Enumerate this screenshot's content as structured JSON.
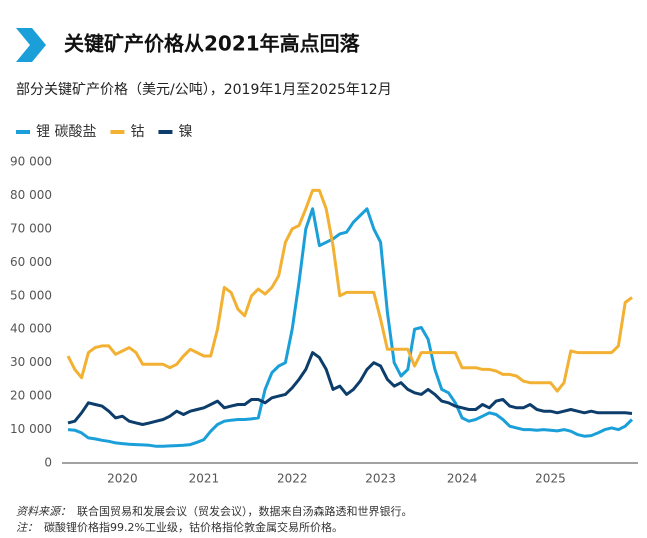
{
  "chart_data": {
    "type": "line",
    "title": "关键矿产价格从2021年高点回落",
    "subtitle": "部分关键矿产价格（美元/公吨），2019年1月至2025年12月",
    "categories": [
      null,
      null,
      null,
      null,
      null,
      null,
      null,
      null,
      "2020",
      null,
      null,
      null,
      null,
      null,
      null,
      null,
      null,
      null,
      null,
      null,
      "2021",
      null,
      null,
      null,
      null,
      null,
      null,
      null,
      null,
      null,
      null,
      null,
      null,
      "2022",
      null,
      null,
      null,
      null,
      null,
      null,
      null,
      null,
      null,
      null,
      null,
      null,
      "2023",
      null,
      null,
      null,
      null,
      null,
      null,
      null,
      null,
      null,
      null,
      null,
      "2024",
      null,
      null,
      null,
      null,
      null,
      null,
      null,
      null,
      null,
      null,
      null,
      null,
      "2025",
      null,
      null,
      null,
      null,
      null,
      null,
      null,
      null,
      null,
      null,
      null,
      null
    ],
    "series": [
      {
        "name": "锂 碳酸盐",
        "color": "#1a9fd9",
        "values": [
          10000,
          9800,
          9000,
          7500,
          7200,
          6800,
          6500,
          6000,
          5800,
          5600,
          5500,
          5400,
          5300,
          5000,
          5000,
          5100,
          5200,
          5300,
          5500,
          6200,
          7000,
          9500,
          11500,
          12500,
          12800,
          13000,
          13000,
          13200,
          13500,
          22000,
          27000,
          29000,
          30000,
          40000,
          54000,
          70000,
          76000,
          65000,
          66000,
          67000,
          68500,
          69000,
          72000,
          74000,
          76000,
          70000,
          66000,
          45000,
          30000,
          26000,
          28000,
          40000,
          40500,
          37000,
          28000,
          22000,
          21000,
          18000,
          13500,
          12500,
          13000,
          14000,
          15000,
          14500,
          13000,
          11000,
          10500,
          10000,
          10000,
          9800,
          10000,
          9800,
          9600,
          10000,
          9500,
          8500,
          8000,
          8200,
          9000,
          10000,
          10500,
          10000,
          11000,
          13000
        ]
      },
      {
        "name": "钴",
        "color": "#f2b133",
        "values": [
          32000,
          28000,
          25500,
          33000,
          34500,
          35000,
          35000,
          32500,
          33500,
          34500,
          33000,
          29500,
          29500,
          29500,
          29500,
          28500,
          29500,
          32000,
          34000,
          33000,
          32000,
          32000,
          40000,
          52500,
          51000,
          46000,
          44000,
          50000,
          52000,
          50500,
          52500,
          56000,
          66000,
          70000,
          71000,
          76000,
          81500,
          81500,
          76000,
          65000,
          50000,
          51000,
          51000,
          51000,
          51000,
          51000,
          43000,
          34000,
          34000,
          34000,
          34000,
          29000,
          33000,
          33000,
          33000,
          33000,
          33000,
          33000,
          28500,
          28500,
          28500,
          28000,
          28000,
          27500,
          26500,
          26500,
          26000,
          24500,
          24000,
          24000,
          24000,
          24000,
          21500,
          24000,
          33500,
          33000,
          33000,
          33000,
          33000,
          33000,
          33000,
          35000,
          48000,
          49500
        ]
      },
      {
        "name": "镍",
        "color": "#0d3d6b",
        "values": [
          12000,
          12500,
          15000,
          18000,
          17500,
          17000,
          15500,
          13500,
          14000,
          12500,
          12000,
          11500,
          12000,
          12500,
          13000,
          14000,
          15500,
          14500,
          15500,
          16000,
          16500,
          17500,
          18500,
          16500,
          17000,
          17500,
          17500,
          19000,
          19000,
          18000,
          19500,
          20000,
          20500,
          22500,
          25000,
          28000,
          33000,
          31500,
          28000,
          22000,
          23000,
          20500,
          22000,
          24500,
          28000,
          30000,
          29000,
          25000,
          23000,
          24000,
          22000,
          21000,
          20500,
          22000,
          20500,
          18500,
          18000,
          17000,
          16500,
          16000,
          16000,
          17500,
          16500,
          18500,
          19000,
          17000,
          16500,
          16500,
          17500,
          16000,
          15500,
          15500,
          15000,
          15500,
          16000,
          15500,
          15000,
          15500,
          15000,
          15000,
          15000,
          15000,
          15000,
          14800
        ]
      }
    ],
    "ylim": [
      0,
      90000
    ],
    "yticks": [
      0,
      {
        "value": 10000,
        "label": "10 000"
      },
      {
        "value": 20000,
        "label": "20 000"
      },
      {
        "value": 30000,
        "label": "30 000"
      },
      {
        "value": 40000,
        "label": "40 000"
      },
      {
        "value": 50000,
        "label": "50 000"
      },
      {
        "value": 60000,
        "label": "60 000"
      },
      {
        "value": 70000,
        "label": "70 000"
      },
      {
        "value": 80000,
        "label": "80 000"
      },
      {
        "value": 90000,
        "label": "90 000"
      }
    ],
    "grid": false,
    "legend": "top-left",
    "source": {
      "label": "资料来源：",
      "text": "联合国贸易和发展会议（贸发会议），数据来自汤森路透和世界银行。"
    },
    "note": {
      "label": "注：",
      "text": "碳酸锂价格指99.2%工业级，钴价格指伦敦金属交易所价格。"
    }
  }
}
